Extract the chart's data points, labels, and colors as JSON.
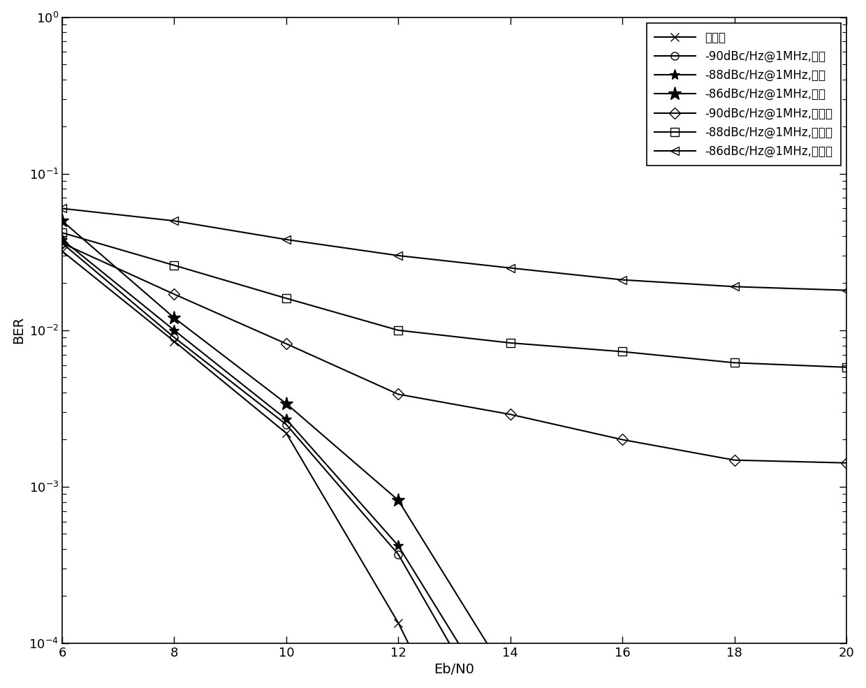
{
  "xlabel": "Eb/N0",
  "ylabel": "BER",
  "xlim": [
    6,
    20
  ],
  "ylim": [
    0.0001,
    1.0
  ],
  "xticks": [
    6,
    8,
    10,
    12,
    14,
    16,
    18,
    20
  ],
  "series": [
    {
      "label": "无相噪",
      "marker": "x",
      "markersize": 9,
      "mfc": "black",
      "x": [
        6,
        8,
        10,
        12,
        13.5
      ],
      "y": [
        0.032,
        0.0085,
        0.0022,
        0.000135,
        1.1e-05
      ]
    },
    {
      "label": "-90dBc/Hz@1MHz,补偿",
      "marker": "o",
      "markersize": 8,
      "mfc": "none",
      "x": [
        6,
        8,
        10,
        12,
        13.8
      ],
      "y": [
        0.036,
        0.009,
        0.0025,
        0.00037,
        2.8e-05
      ]
    },
    {
      "label": "-88dBc/Hz@1MHz,补偿",
      "marker": "*",
      "markersize": 11,
      "mfc": "black",
      "x": [
        6,
        8,
        10,
        12,
        13.8
      ],
      "y": [
        0.038,
        0.01,
        0.0027,
        0.00042,
        3.8e-05
      ]
    },
    {
      "label": "-86dBc/Hz@1MHz,补偿",
      "marker": "*",
      "markersize": 14,
      "mfc": "black",
      "x": [
        6,
        8,
        10,
        12,
        13.8
      ],
      "y": [
        0.05,
        0.012,
        0.0034,
        0.00082,
        7.5e-05
      ]
    },
    {
      "label": "-90dBc/Hz@1MHz,不补偿",
      "marker": "D",
      "markersize": 8,
      "mfc": "none",
      "x": [
        6,
        8,
        10,
        12,
        14,
        16,
        18,
        20
      ],
      "y": [
        0.036,
        0.017,
        0.0082,
        0.0039,
        0.0029,
        0.002,
        0.00148,
        0.00142
      ]
    },
    {
      "label": "-88dBc/Hz@1MHz,不补偿",
      "marker": "s",
      "markersize": 8,
      "mfc": "none",
      "x": [
        6,
        8,
        10,
        12,
        14,
        16,
        18,
        20
      ],
      "y": [
        0.042,
        0.026,
        0.016,
        0.01,
        0.0083,
        0.0073,
        0.0062,
        0.0058
      ]
    },
    {
      "label": "-86dBc/Hz@1MHz,不补偿",
      "marker": "<",
      "markersize": 8,
      "mfc": "none",
      "x": [
        6,
        8,
        10,
        12,
        14,
        16,
        18,
        20
      ],
      "y": [
        0.06,
        0.05,
        0.038,
        0.03,
        0.025,
        0.021,
        0.019,
        0.018
      ]
    }
  ],
  "legend_loc": "upper right",
  "label_fontsize": 14,
  "tick_fontsize": 13,
  "legend_fontsize": 12,
  "linewidth": 1.5
}
